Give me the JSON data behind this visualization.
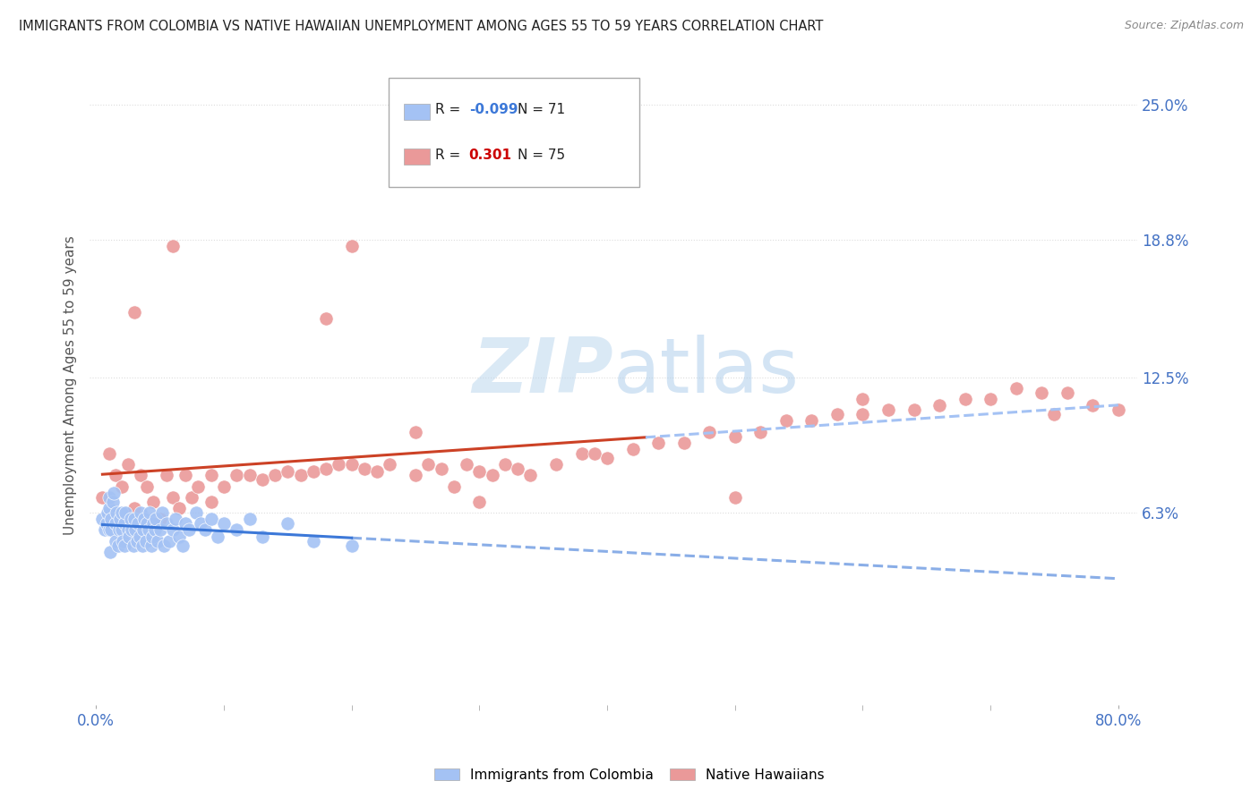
{
  "title": "IMMIGRANTS FROM COLOMBIA VS NATIVE HAWAIIAN UNEMPLOYMENT AMONG AGES 55 TO 59 YEARS CORRELATION CHART",
  "source": "Source: ZipAtlas.com",
  "ylabel": "Unemployment Among Ages 55 to 59 years",
  "right_yticks": [
    "6.3%",
    "12.5%",
    "18.8%",
    "25.0%"
  ],
  "right_ytick_values": [
    0.063,
    0.125,
    0.188,
    0.25
  ],
  "xlim": [
    -0.005,
    0.815
  ],
  "ylim": [
    -0.025,
    0.268
  ],
  "colombia_R": -0.099,
  "colombia_N": 71,
  "hawaii_R": 0.301,
  "hawaii_N": 75,
  "colombia_color": "#a4c2f4",
  "hawaii_color": "#ea9999",
  "colombia_line_color": "#3c78d8",
  "hawaii_solid_color": "#cc4125",
  "hawaii_dash_color": "#a4c2f4",
  "watermark_color": "#cfe2f3",
  "background_color": "#ffffff",
  "grid_color": "#dddddd",
  "colombia_x": [
    0.005,
    0.007,
    0.008,
    0.009,
    0.01,
    0.01,
    0.01,
    0.011,
    0.012,
    0.012,
    0.013,
    0.014,
    0.015,
    0.015,
    0.016,
    0.017,
    0.018,
    0.019,
    0.02,
    0.02,
    0.021,
    0.022,
    0.022,
    0.023,
    0.025,
    0.026,
    0.027,
    0.028,
    0.029,
    0.03,
    0.031,
    0.032,
    0.033,
    0.034,
    0.035,
    0.036,
    0.037,
    0.038,
    0.039,
    0.04,
    0.041,
    0.042,
    0.043,
    0.044,
    0.045,
    0.046,
    0.047,
    0.048,
    0.05,
    0.052,
    0.053,
    0.055,
    0.057,
    0.06,
    0.062,
    0.065,
    0.068,
    0.07,
    0.073,
    0.078,
    0.082,
    0.085,
    0.09,
    0.095,
    0.1,
    0.11,
    0.12,
    0.13,
    0.15,
    0.17,
    0.2
  ],
  "colombia_y": [
    0.06,
    0.055,
    0.058,
    0.063,
    0.065,
    0.07,
    0.055,
    0.045,
    0.055,
    0.06,
    0.068,
    0.072,
    0.05,
    0.058,
    0.063,
    0.048,
    0.055,
    0.06,
    0.055,
    0.063,
    0.05,
    0.048,
    0.058,
    0.063,
    0.055,
    0.052,
    0.06,
    0.055,
    0.048,
    0.06,
    0.055,
    0.05,
    0.058,
    0.052,
    0.063,
    0.048,
    0.055,
    0.06,
    0.05,
    0.058,
    0.055,
    0.063,
    0.048,
    0.052,
    0.058,
    0.055,
    0.06,
    0.05,
    0.055,
    0.063,
    0.048,
    0.058,
    0.05,
    0.055,
    0.06,
    0.052,
    0.048,
    0.058,
    0.055,
    0.063,
    0.058,
    0.055,
    0.06,
    0.052,
    0.058,
    0.055,
    0.06,
    0.052,
    0.058,
    0.05,
    0.048
  ],
  "hawaii_x": [
    0.005,
    0.01,
    0.015,
    0.02,
    0.025,
    0.03,
    0.035,
    0.04,
    0.045,
    0.05,
    0.055,
    0.06,
    0.065,
    0.07,
    0.075,
    0.08,
    0.09,
    0.1,
    0.11,
    0.12,
    0.13,
    0.14,
    0.15,
    0.16,
    0.17,
    0.18,
    0.19,
    0.2,
    0.21,
    0.22,
    0.23,
    0.25,
    0.26,
    0.27,
    0.28,
    0.29,
    0.3,
    0.31,
    0.32,
    0.33,
    0.34,
    0.36,
    0.38,
    0.39,
    0.4,
    0.42,
    0.44,
    0.46,
    0.48,
    0.5,
    0.52,
    0.54,
    0.56,
    0.58,
    0.6,
    0.62,
    0.64,
    0.66,
    0.68,
    0.7,
    0.72,
    0.74,
    0.76,
    0.78,
    0.8,
    0.03,
    0.06,
    0.09,
    0.2,
    0.25,
    0.18,
    0.3,
    0.5,
    0.6,
    0.75
  ],
  "hawaii_y": [
    0.07,
    0.09,
    0.08,
    0.075,
    0.085,
    0.065,
    0.08,
    0.075,
    0.068,
    0.06,
    0.08,
    0.07,
    0.065,
    0.08,
    0.07,
    0.075,
    0.08,
    0.075,
    0.08,
    0.08,
    0.078,
    0.08,
    0.082,
    0.08,
    0.082,
    0.083,
    0.085,
    0.085,
    0.083,
    0.082,
    0.085,
    0.08,
    0.085,
    0.083,
    0.075,
    0.085,
    0.082,
    0.08,
    0.085,
    0.083,
    0.08,
    0.085,
    0.09,
    0.09,
    0.088,
    0.092,
    0.095,
    0.095,
    0.1,
    0.098,
    0.1,
    0.105,
    0.105,
    0.108,
    0.108,
    0.11,
    0.11,
    0.112,
    0.115,
    0.115,
    0.12,
    0.118,
    0.118,
    0.112,
    0.11,
    0.155,
    0.185,
    0.068,
    0.185,
    0.1,
    0.152,
    0.068,
    0.07,
    0.115,
    0.108
  ]
}
